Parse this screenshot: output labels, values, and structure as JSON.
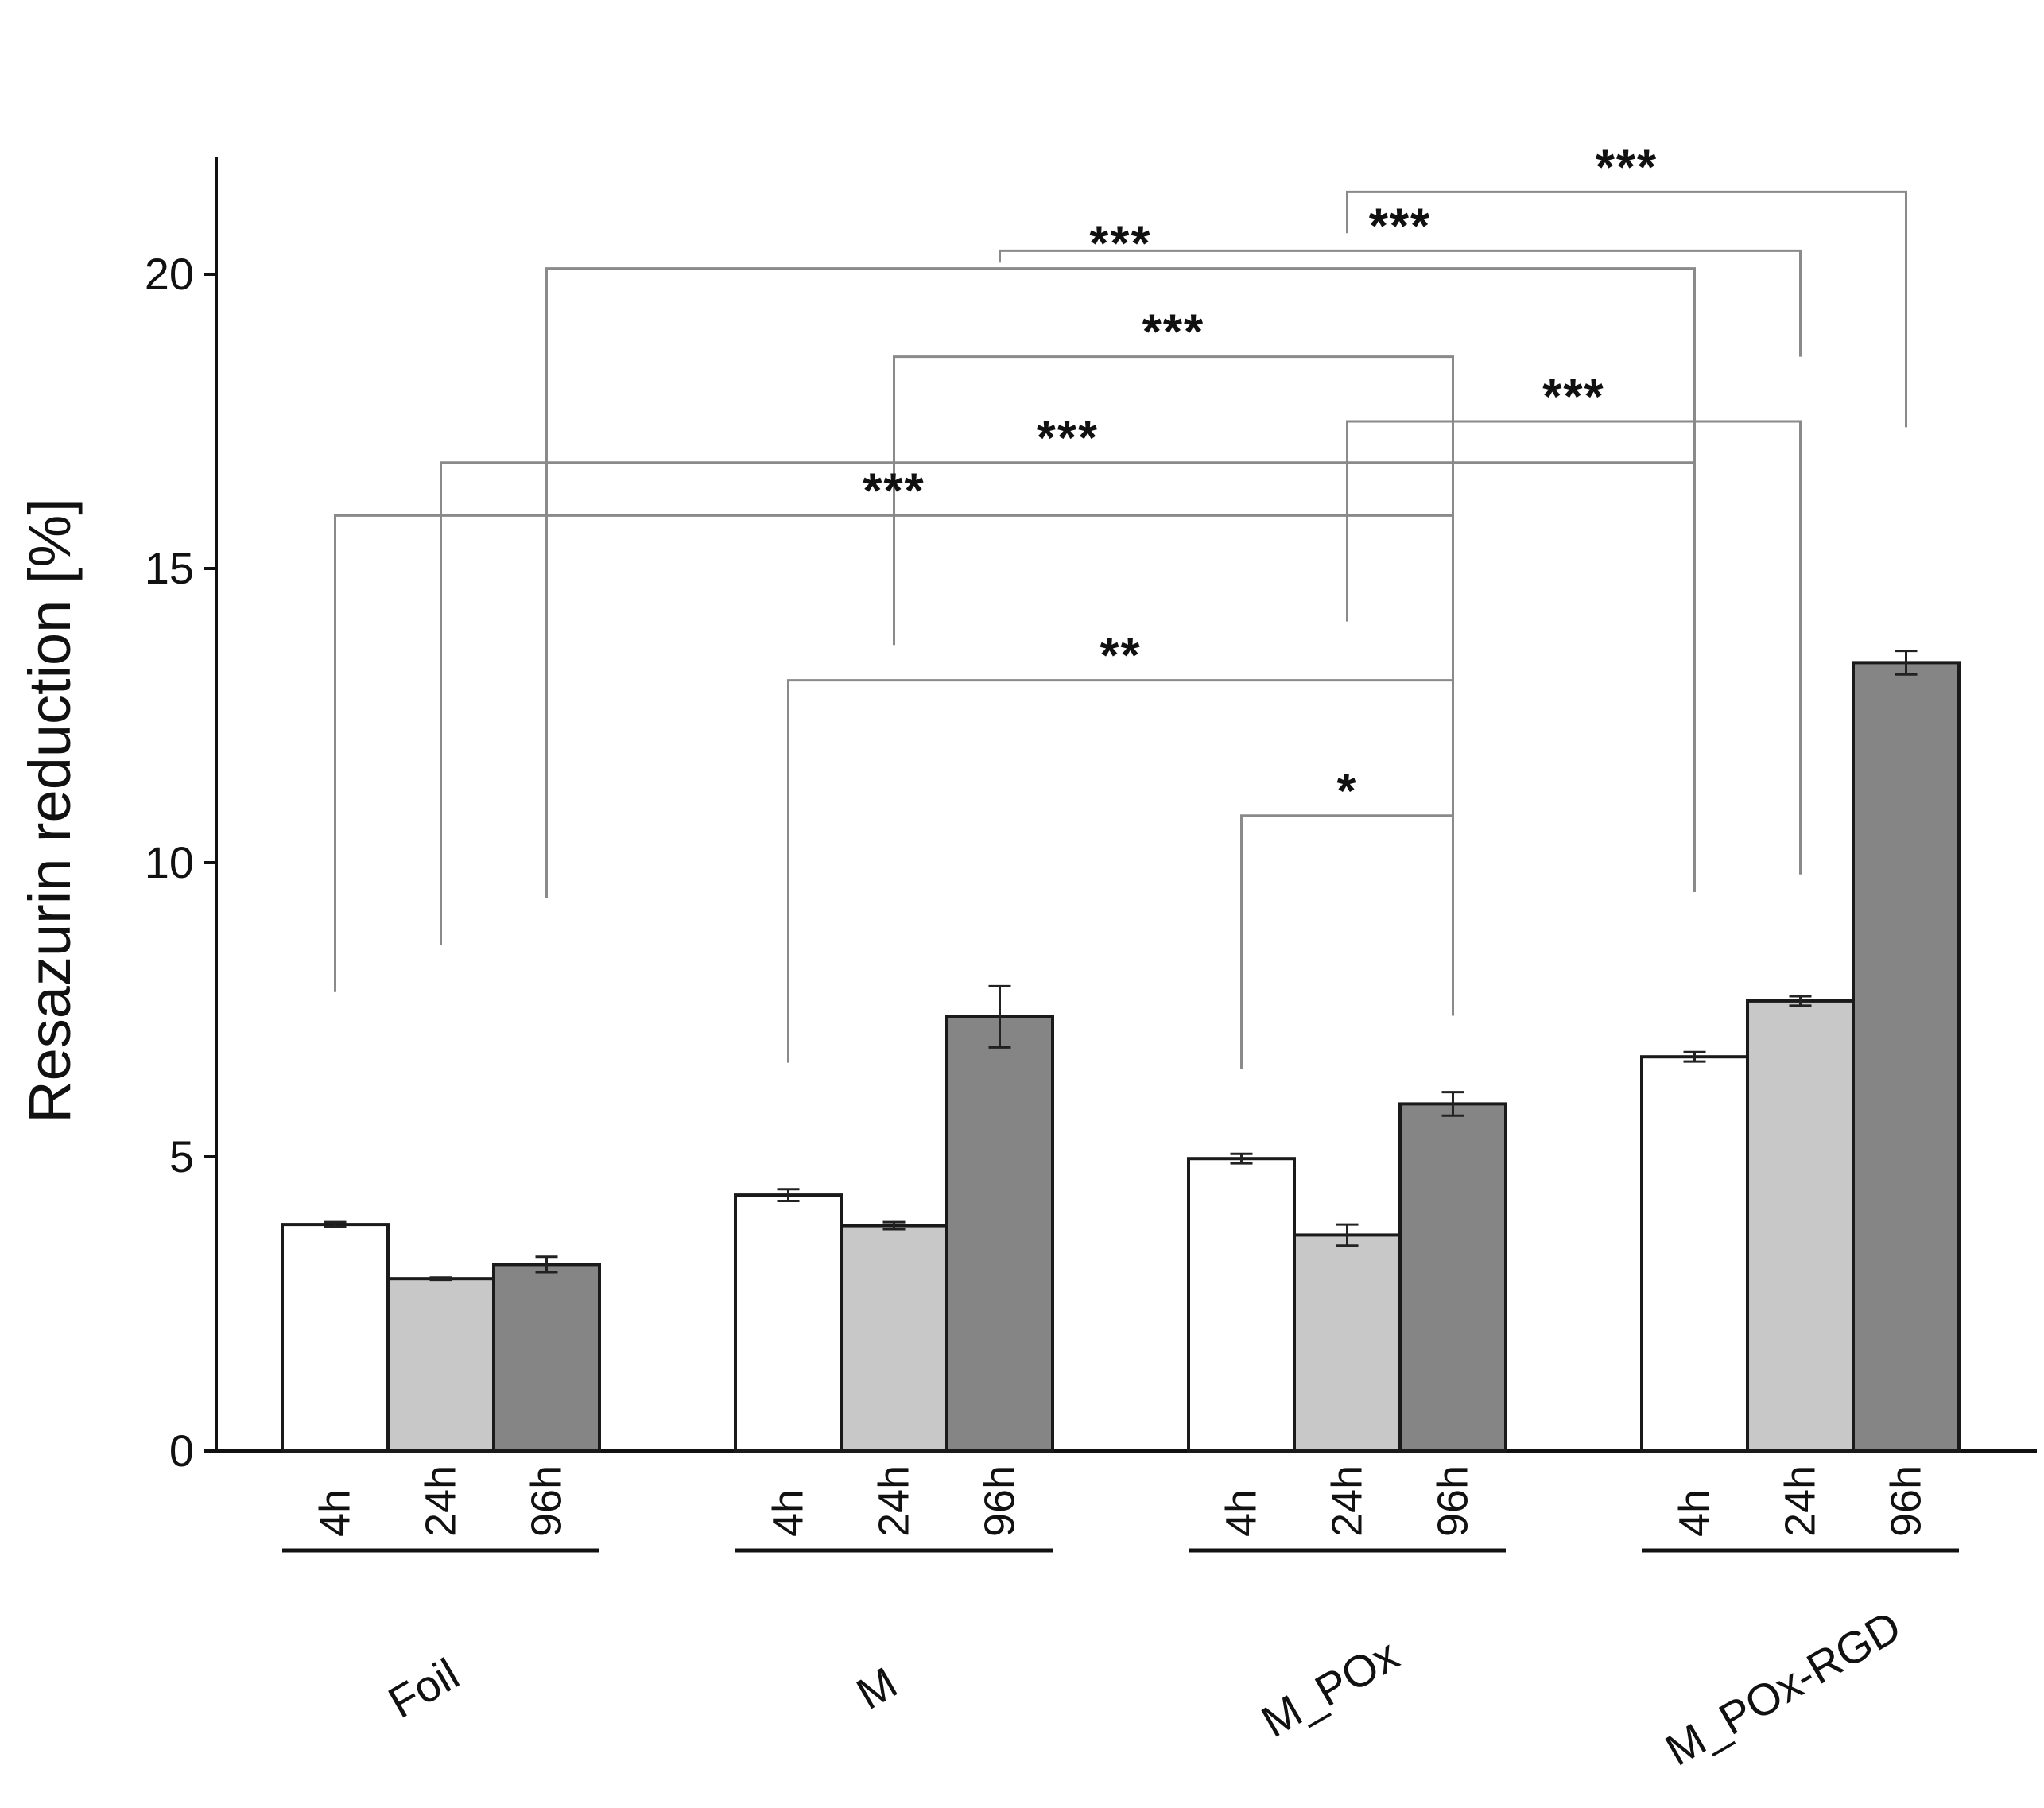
{
  "chart_data": {
    "type": "bar",
    "title": "",
    "xlabel": "",
    "ylabel": "Resazurin reduction [%]",
    "ylim": [
      0,
      22
    ],
    "yticks": [
      0,
      5,
      10,
      15,
      20
    ],
    "grid": false,
    "legend": "none",
    "groups": [
      "Foil",
      "M",
      "M_POx",
      "M_POx-RGD"
    ],
    "timepoints": [
      "4h",
      "24h",
      "96h"
    ],
    "series": [
      {
        "name": "4h",
        "color": "#ffffff",
        "values": [
          3.85,
          4.35,
          4.97,
          6.7
        ],
        "errors": [
          0.04,
          0.1,
          0.08,
          0.08
        ]
      },
      {
        "name": "24h",
        "color": "#c8c8c8",
        "values": [
          2.93,
          3.83,
          3.67,
          7.65
        ],
        "errors": [
          0.02,
          0.06,
          0.18,
          0.08
        ]
      },
      {
        "name": "96h",
        "color": "#858585",
        "values": [
          3.17,
          7.38,
          5.9,
          13.4
        ],
        "errors": [
          0.13,
          0.52,
          0.2,
          0.2
        ]
      }
    ],
    "significance": [
      {
        "label": "***",
        "from": {
          "group": 2,
          "time": 1
        },
        "to": {
          "group": 3,
          "time": 2
        },
        "bar_y": 21.4,
        "drop_left": 20.7,
        "drop_right": 17.4
      },
      {
        "label": "***",
        "from": {
          "group": 1,
          "time": 2
        },
        "to": {
          "group": 3,
          "time": 1
        },
        "bar_y": 20.4,
        "drop_left": 20.2,
        "drop_right": 18.6
      },
      {
        "label": "***",
        "from": {
          "group": 0,
          "time": 2
        },
        "to": {
          "group": 3,
          "time": 0
        },
        "bar_y": 20.1,
        "drop_left": 9.4,
        "drop_right": 15.4
      },
      {
        "label": "***",
        "from": {
          "group": 1,
          "time": 1
        },
        "to": {
          "group": 2,
          "time": 2
        },
        "bar_y": 18.6,
        "drop_left": 13.7,
        "drop_right": 11.3
      },
      {
        "label": "***",
        "from": {
          "group": 2,
          "time": 1
        },
        "to": {
          "group": 3,
          "time": 1
        },
        "bar_y": 17.5,
        "drop_left": 14.1,
        "drop_right": 9.8
      },
      {
        "label": "***",
        "from": {
          "group": 0,
          "time": 1
        },
        "to": {
          "group": 3,
          "time": 0
        },
        "bar_y": 16.8,
        "drop_left": 8.6,
        "drop_right": 9.5
      },
      {
        "label": "***",
        "from": {
          "group": 0,
          "time": 0
        },
        "to": {
          "group": 2,
          "time": 2
        },
        "bar_y": 15.9,
        "drop_left": 7.8,
        "drop_right": 11.4
      },
      {
        "label": "**",
        "from": {
          "group": 1,
          "time": 0
        },
        "to": {
          "group": 2,
          "time": 2
        },
        "bar_y": 13.1,
        "drop_left": 6.6,
        "drop_right": 7.4
      },
      {
        "label": "*",
        "from": {
          "group": 2,
          "time": 0
        },
        "to": {
          "group": 2,
          "time": 2
        },
        "bar_y": 10.8,
        "drop_left": 6.5,
        "drop_right": 7.4
      }
    ]
  }
}
